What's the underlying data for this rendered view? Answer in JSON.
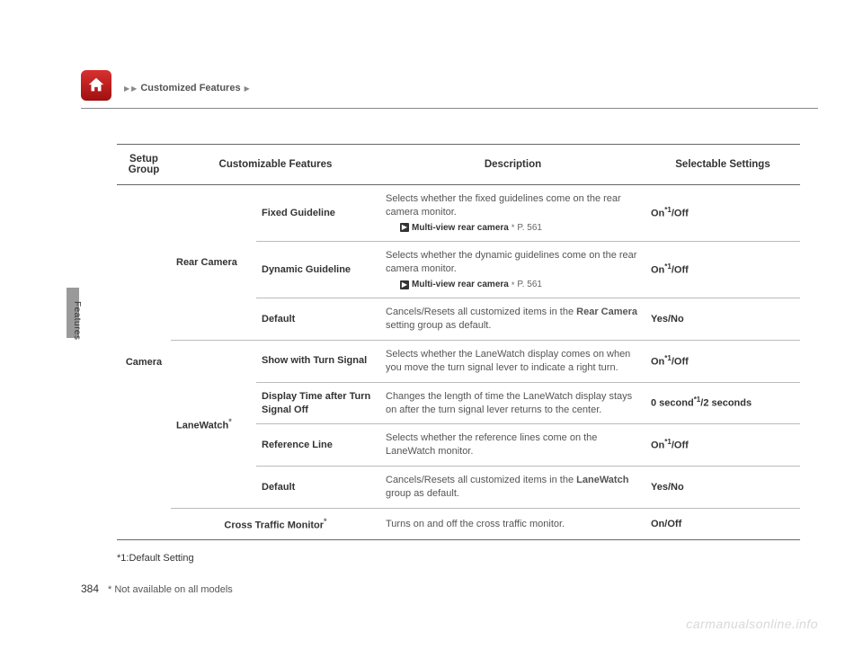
{
  "breadcrumb": {
    "label": "Customized Features"
  },
  "sideLabel": "Features",
  "headers": {
    "c1": "Setup Group",
    "c2": "Customizable Features",
    "c3": "Description",
    "c4": "Selectable Settings"
  },
  "rows": [
    {
      "group1": "Camera",
      "group2": "Rear Camera",
      "feature": "Fixed Guideline",
      "desc": "Selects whether the fixed guidelines come on the rear camera monitor.",
      "ref": "Multi-view rear camera",
      "refPage": "P. 561",
      "refStar": "*",
      "setting_html": "<b>On</b><span class='sup'>*1</span>/<b>Off</b>"
    },
    {
      "feature": "Dynamic Guideline",
      "desc": "Selects whether the dynamic guidelines come on the rear camera monitor.",
      "ref": "Multi-view rear camera",
      "refPage": "P. 561",
      "refStar": "*",
      "setting_html": "<b>On</b><span class='sup'>*1</span>/<b>Off</b>"
    },
    {
      "feature": "Default",
      "desc_html": "Cancels/Resets all customized items in the <b>Rear Camera</b> setting group as default.",
      "setting_html": "<b>Yes</b>/<b>No</b>"
    },
    {
      "group2": "LaneWatch",
      "group2Star": "*",
      "feature": "Show with Turn Signal",
      "desc": "Selects whether the LaneWatch display comes on when you move the turn signal lever to indicate a right turn.",
      "setting_html": "<b>On</b><span class='sup'>*1</span>/<b>Off</b>"
    },
    {
      "feature": "Display Time after Turn Signal Off",
      "desc": "Changes the length of time the LaneWatch display stays on after the turn signal lever returns to the center.",
      "setting_html": "<b>0 second</b><span class='sup'>*1</span>/<b>2 seconds</b>"
    },
    {
      "feature": "Reference Line",
      "desc": "Selects whether the reference lines come on the LaneWatch monitor.",
      "setting_html": "<b>On</b><span class='sup'>*1</span>/<b>Off</b>"
    },
    {
      "feature": "Default",
      "desc_html": "Cancels/Resets all customized items in the <b>LaneWatch</b> group as default.",
      "setting_html": "<b>Yes</b>/<b>No</b>"
    },
    {
      "featureSpan": "Cross Traffic Monitor",
      "featureStar": "*",
      "desc": "Turns on and off the cross traffic monitor.",
      "setting_html": "<b>On</b>/<b>Off</b>"
    }
  ],
  "footnote1": "*1:Default Setting",
  "pageNum": "384",
  "footnote2": "* Not available on all models",
  "watermark": "carmanualsonline.info"
}
